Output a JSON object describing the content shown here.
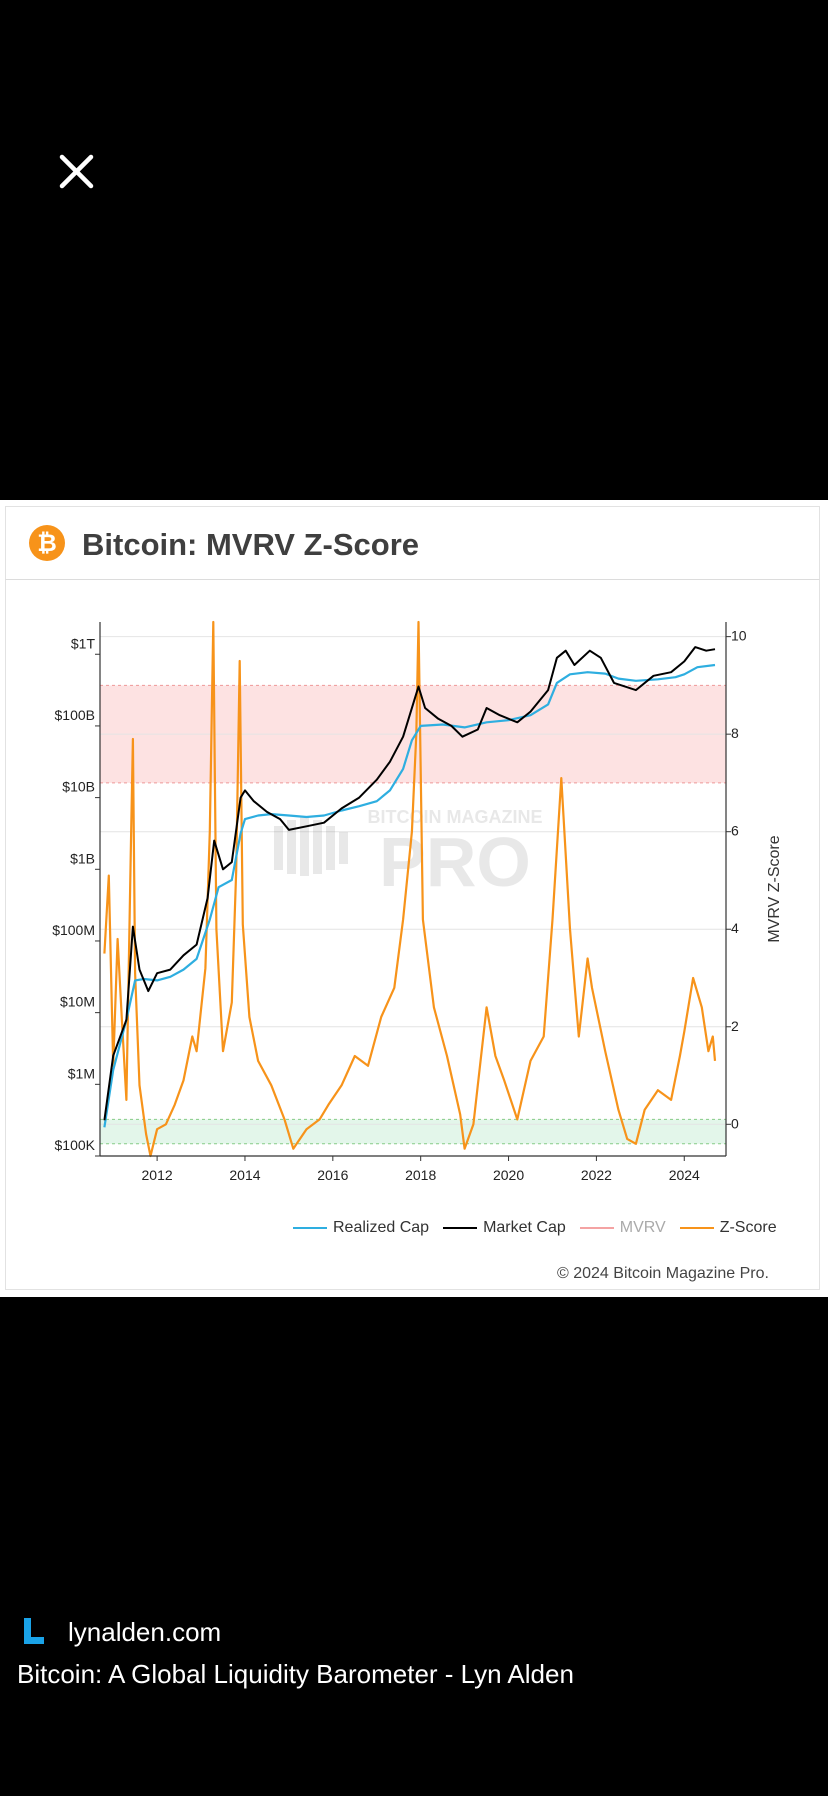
{
  "viewer": {
    "close_label": "Close"
  },
  "card": {
    "title": "Bitcoin: MVRV Z-Score",
    "credit": "© 2024 Bitcoin Magazine Pro.",
    "watermark_top": "BITCOIN MAGAZINE",
    "watermark_bottom": "PRO"
  },
  "colors": {
    "realized_cap": "#2eaee0",
    "market_cap": "#000000",
    "mvrv": "#f4a3a3",
    "zscore": "#f7931a",
    "bitcoin_orange": "#f7931a",
    "red_band": "#fde2e2",
    "green_band": "#e3f6ea",
    "footer_logo": "#1aa3e8"
  },
  "chart_data": {
    "type": "line",
    "title": "Bitcoin: MVRV Z-Score",
    "xlabel": "",
    "ylabel_left": "",
    "ylabel_right": "MVRV Z-Score",
    "x_ticks": [
      "2012",
      "2014",
      "2016",
      "2018",
      "2020",
      "2022",
      "2024"
    ],
    "xlim": [
      2010.7,
      2024.95
    ],
    "y_left_ticks": [
      "$100K",
      "$1M",
      "$10M",
      "$100M",
      "$1B",
      "$10B",
      "$100B",
      "$1T"
    ],
    "y_left_scale": "log",
    "y_left_range_log10": [
      5,
      12.45
    ],
    "y_right_ticks": [
      "0",
      "2",
      "4",
      "6",
      "8",
      "10"
    ],
    "y_right_range": [
      -0.65,
      10.3
    ],
    "bands": [
      {
        "name": "high zone",
        "axis": "right",
        "range": [
          7,
          9
        ],
        "color": "red"
      },
      {
        "name": "low zone",
        "axis": "right",
        "range": [
          -0.4,
          0.1
        ],
        "color": "green"
      }
    ],
    "series": [
      {
        "name": "Realized Cap",
        "axis": "left-log10",
        "points": [
          [
            2010.8,
            5.4
          ],
          [
            2011.0,
            6.2
          ],
          [
            2011.3,
            6.9
          ],
          [
            2011.5,
            7.45
          ],
          [
            2011.7,
            7.47
          ],
          [
            2012.0,
            7.45
          ],
          [
            2012.3,
            7.5
          ],
          [
            2012.6,
            7.6
          ],
          [
            2012.9,
            7.75
          ],
          [
            2013.2,
            8.3
          ],
          [
            2013.4,
            8.75
          ],
          [
            2013.7,
            8.85
          ],
          [
            2013.9,
            9.5
          ],
          [
            2014.0,
            9.7
          ],
          [
            2014.3,
            9.75
          ],
          [
            2014.6,
            9.77
          ],
          [
            2015.0,
            9.75
          ],
          [
            2015.4,
            9.73
          ],
          [
            2015.8,
            9.75
          ],
          [
            2016.2,
            9.82
          ],
          [
            2016.6,
            9.88
          ],
          [
            2017.0,
            9.95
          ],
          [
            2017.3,
            10.1
          ],
          [
            2017.6,
            10.4
          ],
          [
            2017.8,
            10.8
          ],
          [
            2018.0,
            11.0
          ],
          [
            2018.5,
            11.02
          ],
          [
            2019.0,
            10.98
          ],
          [
            2019.5,
            11.05
          ],
          [
            2020.0,
            11.08
          ],
          [
            2020.5,
            11.15
          ],
          [
            2020.9,
            11.3
          ],
          [
            2021.1,
            11.6
          ],
          [
            2021.4,
            11.72
          ],
          [
            2021.8,
            11.75
          ],
          [
            2022.2,
            11.73
          ],
          [
            2022.5,
            11.66
          ],
          [
            2022.9,
            11.63
          ],
          [
            2023.4,
            11.65
          ],
          [
            2023.8,
            11.68
          ],
          [
            2024.0,
            11.72
          ],
          [
            2024.3,
            11.82
          ],
          [
            2024.7,
            11.85
          ]
        ]
      },
      {
        "name": "Market Cap",
        "axis": "left-log10",
        "points": [
          [
            2010.8,
            5.5
          ],
          [
            2011.0,
            6.4
          ],
          [
            2011.3,
            6.9
          ],
          [
            2011.45,
            8.2
          ],
          [
            2011.6,
            7.6
          ],
          [
            2011.8,
            7.3
          ],
          [
            2012.0,
            7.55
          ],
          [
            2012.3,
            7.6
          ],
          [
            2012.6,
            7.8
          ],
          [
            2012.9,
            7.95
          ],
          [
            2013.15,
            8.6
          ],
          [
            2013.3,
            9.4
          ],
          [
            2013.5,
            9.0
          ],
          [
            2013.7,
            9.1
          ],
          [
            2013.9,
            10.0
          ],
          [
            2014.0,
            10.1
          ],
          [
            2014.2,
            9.95
          ],
          [
            2014.5,
            9.8
          ],
          [
            2014.8,
            9.7
          ],
          [
            2015.0,
            9.55
          ],
          [
            2015.4,
            9.6
          ],
          [
            2015.8,
            9.65
          ],
          [
            2016.2,
            9.85
          ],
          [
            2016.6,
            10.0
          ],
          [
            2017.0,
            10.25
          ],
          [
            2017.3,
            10.5
          ],
          [
            2017.6,
            10.85
          ],
          [
            2017.85,
            11.35
          ],
          [
            2017.95,
            11.55
          ],
          [
            2018.1,
            11.25
          ],
          [
            2018.4,
            11.1
          ],
          [
            2018.7,
            11.0
          ],
          [
            2018.95,
            10.85
          ],
          [
            2019.3,
            10.95
          ],
          [
            2019.5,
            11.25
          ],
          [
            2019.8,
            11.15
          ],
          [
            2020.2,
            11.05
          ],
          [
            2020.5,
            11.2
          ],
          [
            2020.9,
            11.5
          ],
          [
            2021.1,
            11.95
          ],
          [
            2021.3,
            12.05
          ],
          [
            2021.5,
            11.85
          ],
          [
            2021.85,
            12.05
          ],
          [
            2022.1,
            11.95
          ],
          [
            2022.4,
            11.6
          ],
          [
            2022.9,
            11.5
          ],
          [
            2023.3,
            11.7
          ],
          [
            2023.7,
            11.75
          ],
          [
            2024.0,
            11.9
          ],
          [
            2024.25,
            12.1
          ],
          [
            2024.5,
            12.05
          ],
          [
            2024.7,
            12.07
          ]
        ]
      },
      {
        "name": "Z-Score",
        "axis": "right",
        "points": [
          [
            2010.8,
            3.5
          ],
          [
            2010.9,
            5.1
          ],
          [
            2011.0,
            1.2
          ],
          [
            2011.1,
            3.8
          ],
          [
            2011.2,
            2.1
          ],
          [
            2011.3,
            0.5
          ],
          [
            2011.4,
            5.6
          ],
          [
            2011.45,
            7.9
          ],
          [
            2011.5,
            3.1
          ],
          [
            2011.6,
            0.8
          ],
          [
            2011.75,
            -0.2
          ],
          [
            2011.85,
            -0.65
          ],
          [
            2012.0,
            -0.1
          ],
          [
            2012.2,
            0.0
          ],
          [
            2012.4,
            0.4
          ],
          [
            2012.6,
            0.9
          ],
          [
            2012.8,
            1.8
          ],
          [
            2012.9,
            1.5
          ],
          [
            2013.1,
            3.2
          ],
          [
            2013.2,
            6.0
          ],
          [
            2013.28,
            10.3
          ],
          [
            2013.35,
            4.0
          ],
          [
            2013.5,
            1.5
          ],
          [
            2013.7,
            2.5
          ],
          [
            2013.8,
            5.2
          ],
          [
            2013.88,
            9.5
          ],
          [
            2013.95,
            4.1
          ],
          [
            2014.1,
            2.2
          ],
          [
            2014.3,
            1.3
          ],
          [
            2014.6,
            0.8
          ],
          [
            2014.9,
            0.1
          ],
          [
            2015.1,
            -0.5
          ],
          [
            2015.4,
            -0.1
          ],
          [
            2015.7,
            0.1
          ],
          [
            2015.9,
            0.4
          ],
          [
            2016.2,
            0.8
          ],
          [
            2016.5,
            1.4
          ],
          [
            2016.8,
            1.2
          ],
          [
            2017.1,
            2.2
          ],
          [
            2017.4,
            2.8
          ],
          [
            2017.6,
            4.2
          ],
          [
            2017.8,
            6.0
          ],
          [
            2017.9,
            8.0
          ],
          [
            2017.95,
            10.3
          ],
          [
            2018.05,
            4.2
          ],
          [
            2018.3,
            2.4
          ],
          [
            2018.6,
            1.4
          ],
          [
            2018.9,
            0.2
          ],
          [
            2019.0,
            -0.5
          ],
          [
            2019.2,
            0.0
          ],
          [
            2019.5,
            2.4
          ],
          [
            2019.7,
            1.4
          ],
          [
            2019.9,
            0.9
          ],
          [
            2020.2,
            0.1
          ],
          [
            2020.5,
            1.3
          ],
          [
            2020.8,
            1.8
          ],
          [
            2021.0,
            4.2
          ],
          [
            2021.2,
            7.1
          ],
          [
            2021.4,
            4.0
          ],
          [
            2021.6,
            1.8
          ],
          [
            2021.8,
            3.4
          ],
          [
            2021.9,
            2.8
          ],
          [
            2022.2,
            1.5
          ],
          [
            2022.5,
            0.3
          ],
          [
            2022.7,
            -0.3
          ],
          [
            2022.9,
            -0.4
          ],
          [
            2023.1,
            0.3
          ],
          [
            2023.4,
            0.7
          ],
          [
            2023.7,
            0.5
          ],
          [
            2023.9,
            1.4
          ],
          [
            2024.0,
            1.9
          ],
          [
            2024.2,
            3.0
          ],
          [
            2024.4,
            2.4
          ],
          [
            2024.55,
            1.5
          ],
          [
            2024.65,
            1.8
          ],
          [
            2024.7,
            1.3
          ]
        ]
      }
    ],
    "legend": [
      {
        "label": "Realized Cap",
        "color": "#2eaee0"
      },
      {
        "label": "Market Cap",
        "color": "#000000"
      },
      {
        "label": "MVRV",
        "color": "#f4a3a3"
      },
      {
        "label": "Z-Score",
        "color": "#f7931a"
      }
    ],
    "legend_position": "bottom-right"
  },
  "footer": {
    "logo_letter": "L",
    "site": "lynalden.com",
    "headline": "Bitcoin: A Global Liquidity Barometer - Lyn Alden"
  }
}
